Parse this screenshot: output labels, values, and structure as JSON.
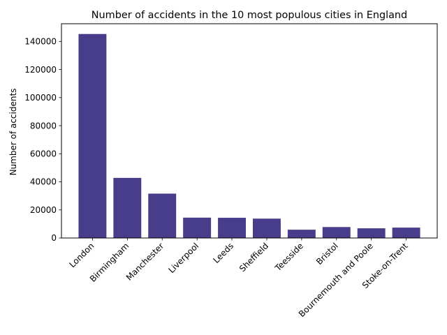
{
  "chart_data": {
    "type": "bar",
    "title": "Number of accidents in the 10 most populous cities in England",
    "xlabel": "",
    "ylabel": "Number of accidents",
    "categories": [
      "London",
      "Birmingham",
      "Manchester",
      "Liverpool",
      "Leeds",
      "Sheffield",
      "Teesside",
      "Bristol",
      "Bournemouth and Poole",
      "Stoke-on-Trent"
    ],
    "values": [
      145300,
      42800,
      31600,
      14500,
      14400,
      13800,
      5900,
      7800,
      6900,
      7400
    ],
    "ylim": [
      0,
      152600
    ],
    "yticks": [
      0,
      20000,
      40000,
      60000,
      80000,
      100000,
      120000,
      140000
    ],
    "ytick_labels": [
      "0",
      "20000",
      "40000",
      "60000",
      "80000",
      "100000",
      "120000",
      "140000"
    ],
    "bar_color": "#483d8b",
    "grid": false,
    "legend": "none"
  }
}
